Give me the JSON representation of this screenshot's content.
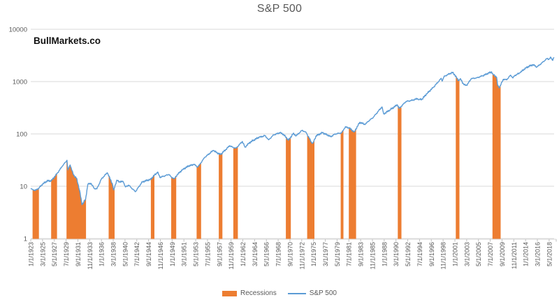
{
  "watermark": "BullMarkets.co",
  "legend": {
    "items": [
      {
        "label": "Recessions",
        "color": "#ED7D31",
        "swatch": "bar"
      },
      {
        "label": "S&P 500",
        "color": "#5B9BD5",
        "swatch": "line"
      }
    ]
  },
  "colors": {
    "recession_orange": "#ED7D31",
    "line_blue": "#5B9BD5",
    "gridline_gray": "#D9D9D9",
    "tick_gray": "#BFBFBF",
    "axis_text_gray": "#595959",
    "title_gray": "#595959",
    "watermark_black": "#111111",
    "background": "#FFFFFF"
  },
  "chart_data": {
    "type": "line",
    "title": "S&P 500",
    "xlabel": "",
    "ylabel": "",
    "y_axis": {
      "scale": "log",
      "ticks": [
        1,
        10,
        100,
        1000,
        10000
      ],
      "ylim": [
        1,
        10000
      ]
    },
    "x_axis": {
      "xlim": [
        "1923-01",
        "2019-04"
      ],
      "tick_labels": [
        "1/1/1923",
        "3/1/1925",
        "5/1/1927",
        "7/1/1929",
        "9/1/1931",
        "11/1/1933",
        "1/1/1936",
        "3/1/1938",
        "5/1/1940",
        "7/1/1942",
        "9/1/1944",
        "11/1/1946",
        "1/1/1949",
        "3/1/1951",
        "5/1/1953",
        "7/1/1955",
        "9/1/1957",
        "11/1/1959",
        "1/1/1962",
        "3/1/1964",
        "5/1/1966",
        "7/1/1968",
        "9/1/1970",
        "11/1/1972",
        "1/1/1975",
        "3/1/1977",
        "5/1/1979",
        "7/1/1981",
        "9/1/1983",
        "11/1/1985",
        "1/1/1988",
        "3/1/1990",
        "5/1/1992",
        "7/1/1994",
        "9/1/1996",
        "11/1/1998",
        "1/1/2001",
        "3/1/2003",
        "5/1/2005",
        "7/1/2007",
        "9/1/2009",
        "11/1/2011",
        "1/1/2014",
        "3/1/2016",
        "5/1/2018"
      ]
    },
    "grid": "horizontal",
    "legend_position": "bottom",
    "series": [
      {
        "name": "S&P 500",
        "type": "line",
        "color": "#5B9BD5",
        "points": [
          [
            "1923-01",
            8.9
          ],
          [
            "1923-05",
            8.7
          ],
          [
            "1923-11",
            8.3
          ],
          [
            "1924-07",
            9.2
          ],
          [
            "1925-01",
            10.6
          ],
          [
            "1926-01",
            12.65
          ],
          [
            "1926-10",
            12.6
          ],
          [
            "1927-11",
            17.4
          ],
          [
            "1928-11",
            24.4
          ],
          [
            "1929-09",
            31.3
          ],
          [
            "1929-11",
            20.6
          ],
          [
            "1930-04",
            25.5
          ],
          [
            "1930-11",
            16.6
          ],
          [
            "1931-06",
            14.3
          ],
          [
            "1931-09",
            11.2
          ],
          [
            "1932-01",
            8.3
          ],
          [
            "1932-06",
            4.43
          ],
          [
            "1933-02",
            5.66
          ],
          [
            "1933-07",
            10.9
          ],
          [
            "1934-02",
            11.3
          ],
          [
            "1934-09",
            9.1
          ],
          [
            "1935-03",
            8.9
          ],
          [
            "1936-01",
            13.8
          ],
          [
            "1937-02",
            18.1
          ],
          [
            "1938-01",
            11.3
          ],
          [
            "1938-04",
            8.5
          ],
          [
            "1938-11",
            13.1
          ],
          [
            "1939-04",
            12.1
          ],
          [
            "1940-01",
            12.3
          ],
          [
            "1940-06",
            9.7
          ],
          [
            "1941-01",
            10.5
          ],
          [
            "1942-04",
            7.84
          ],
          [
            "1943-07",
            12.1
          ],
          [
            "1945-01",
            13.5
          ],
          [
            "1946-05",
            18.7
          ],
          [
            "1946-10",
            14.75
          ],
          [
            "1948-06",
            16.8
          ],
          [
            "1948-11",
            15.0
          ],
          [
            "1949-06",
            13.97
          ],
          [
            "1950-01",
            16.9
          ],
          [
            "1951-01",
            21.2
          ],
          [
            "1952-01",
            24.2
          ],
          [
            "1953-01",
            26.2
          ],
          [
            "1953-09",
            23.3
          ],
          [
            "1954-01",
            25.5
          ],
          [
            "1955-01",
            35.6
          ],
          [
            "1956-08",
            48.5
          ],
          [
            "1957-03",
            44.0
          ],
          [
            "1957-12",
            40.3
          ],
          [
            "1959-08",
            59.4
          ],
          [
            "1960-02",
            55.8
          ],
          [
            "1960-10",
            53.4
          ],
          [
            "1961-12",
            71.7
          ],
          [
            "1962-06",
            55.6
          ],
          [
            "1963-01",
            65.1
          ],
          [
            "1964-01",
            76.5
          ],
          [
            "1965-01",
            86.1
          ],
          [
            "1966-02",
            92.7
          ],
          [
            "1966-10",
            77.1
          ],
          [
            "1967-09",
            95.8
          ],
          [
            "1968-11",
            105.4
          ],
          [
            "1969-06",
            99.1
          ],
          [
            "1970-06",
            75.6
          ],
          [
            "1971-04",
            101.0
          ],
          [
            "1971-11",
            92.8
          ],
          [
            "1972-12",
            117.5
          ],
          [
            "1973-09",
            105.6
          ],
          [
            "1974-09",
            68.1
          ],
          [
            "1974-12",
            67.1
          ],
          [
            "1975-07",
            92.5
          ],
          [
            "1976-09",
            105.5
          ],
          [
            "1978-03",
            88.8
          ],
          [
            "1979-01",
            99.7
          ],
          [
            "1980-03",
            104.7
          ],
          [
            "1980-11",
            135.7
          ],
          [
            "1981-08",
            129.6
          ],
          [
            "1982-07",
            109.4
          ],
          [
            "1983-07",
            166.4
          ],
          [
            "1984-07",
            151.1
          ],
          [
            "1985-01",
            171.6
          ],
          [
            "1986-01",
            208.2
          ],
          [
            "1987-08",
            329.4
          ],
          [
            "1987-12",
            240.9
          ],
          [
            "1989-01",
            285.4
          ],
          [
            "1990-06",
            360.4
          ],
          [
            "1990-10",
            307.1
          ],
          [
            "1992-01",
            416.1
          ],
          [
            "1993-01",
            435.2
          ],
          [
            "1994-02",
            471.6
          ],
          [
            "1994-06",
            454.8
          ],
          [
            "1995-01",
            465.3
          ],
          [
            "1996-01",
            614.4
          ],
          [
            "1997-01",
            766.2
          ],
          [
            "1998-07",
            1156.6
          ],
          [
            "1998-09",
            1020.6
          ],
          [
            "1999-01",
            1248.8
          ],
          [
            "2000-03",
            1442.2
          ],
          [
            "2000-08",
            1485.5
          ],
          [
            "2001-01",
            1335.6
          ],
          [
            "2001-09",
            1044.6
          ],
          [
            "2002-01",
            1140.2
          ],
          [
            "2002-09",
            867.8
          ],
          [
            "2003-03",
            846.6
          ],
          [
            "2004-01",
            1132.5
          ],
          [
            "2005-01",
            1181.4
          ],
          [
            "2006-01",
            1278.7
          ],
          [
            "2007-10",
            1539.7
          ],
          [
            "2008-01",
            1378.8
          ],
          [
            "2008-09",
            1217.0
          ],
          [
            "2008-11",
            883.0
          ],
          [
            "2009-03",
            757.1
          ],
          [
            "2009-12",
            1110.4
          ],
          [
            "2010-07",
            1079.8
          ],
          [
            "2011-04",
            1331.5
          ],
          [
            "2011-09",
            1173.9
          ],
          [
            "2012-01",
            1300.6
          ],
          [
            "2013-01",
            1480.4
          ],
          [
            "2014-01",
            1822.4
          ],
          [
            "2015-05",
            2111.9
          ],
          [
            "2016-02",
            1904.4
          ],
          [
            "2017-01",
            2275.1
          ],
          [
            "2018-01",
            2789.8
          ],
          [
            "2018-04",
            2653.6
          ],
          [
            "2018-09",
            2901.5
          ],
          [
            "2018-12",
            2567.3
          ],
          [
            "2019-04",
            2903.8
          ]
        ]
      },
      {
        "name": "Recessions",
        "type": "area",
        "color": "#ED7D31",
        "spans": [
          [
            "1923-05",
            "1924-07"
          ],
          [
            "1926-10",
            "1927-11"
          ],
          [
            "1929-08",
            "1933-03"
          ],
          [
            "1937-05",
            "1938-06"
          ],
          [
            "1945-02",
            "1945-10"
          ],
          [
            "1948-11",
            "1949-10"
          ],
          [
            "1953-07",
            "1954-05"
          ],
          [
            "1957-08",
            "1958-04"
          ],
          [
            "1960-04",
            "1961-02"
          ],
          [
            "1969-12",
            "1970-11"
          ],
          [
            "1973-11",
            "1975-03"
          ],
          [
            "1980-01",
            "1980-07"
          ],
          [
            "1981-07",
            "1982-11"
          ],
          [
            "1990-07",
            "1991-03"
          ],
          [
            "2001-03",
            "2001-11"
          ],
          [
            "2007-12",
            "2009-06"
          ]
        ]
      }
    ]
  }
}
